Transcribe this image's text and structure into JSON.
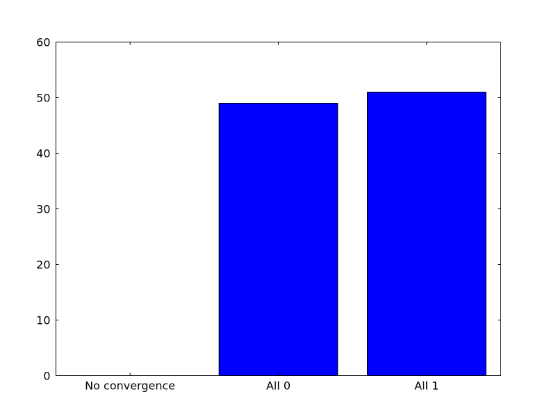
{
  "chart_data": {
    "type": "bar",
    "categories": [
      "No convergence",
      "All 0",
      "All 1"
    ],
    "values": [
      0,
      49,
      51
    ],
    "ylim": [
      0,
      60
    ],
    "yticks": [
      0,
      10,
      20,
      30,
      40,
      50,
      60
    ],
    "bar_color": "#0000ff",
    "edge_color": "#000000",
    "grid": false,
    "legend": "none"
  }
}
